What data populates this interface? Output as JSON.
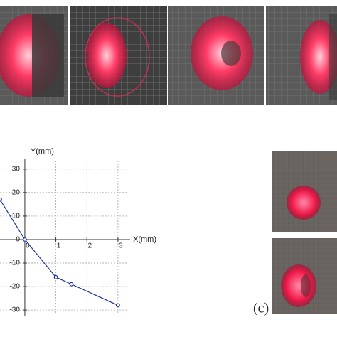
{
  "figure": {
    "panel_label": "(c)"
  },
  "chart_data": {
    "type": "line",
    "x": [
      -0.8,
      0,
      1,
      1.5,
      3
    ],
    "values": [
      17,
      0,
      -16,
      -19,
      -28
    ],
    "color": "#1a2fa0",
    "xlim": [
      -0.8,
      3.3
    ],
    "ylim": [
      -33,
      36
    ],
    "xticks": [
      0,
      1,
      2,
      3
    ],
    "yticks": [
      -30,
      -20,
      -10,
      0,
      10,
      20,
      30
    ],
    "xlabel": "X(mm)",
    "ylabel": "Y(mm)",
    "grid": true
  }
}
